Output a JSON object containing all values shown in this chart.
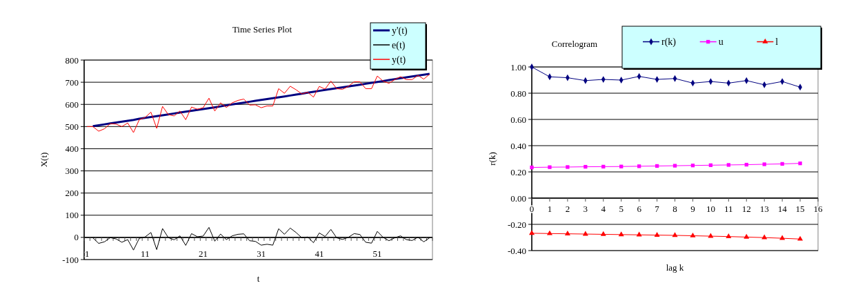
{
  "chart_data": [
    {
      "type": "line",
      "title": "Time Series Plot",
      "xlabel": "t",
      "ylabel": "X(t)",
      "categories": [
        "1",
        null,
        null,
        null,
        null,
        null,
        null,
        null,
        null,
        null,
        "11",
        null,
        null,
        null,
        null,
        null,
        null,
        null,
        null,
        null,
        "21",
        null,
        null,
        null,
        null,
        null,
        null,
        null,
        null,
        null,
        "31",
        null,
        null,
        null,
        null,
        null,
        null,
        null,
        null,
        null,
        "41",
        null,
        null,
        null,
        null,
        null,
        null,
        null,
        null,
        null,
        "51",
        null,
        null,
        null,
        null,
        null,
        null,
        null,
        null,
        null
      ],
      "ylim": [
        -100,
        800
      ],
      "yticks": [
        -100,
        0,
        100,
        200,
        300,
        400,
        500,
        600,
        700,
        800
      ],
      "grid": "y",
      "legend": "top right",
      "series": [
        {
          "name": "y'(t)",
          "color": "#000080",
          "values": [
            null,
            502,
            506,
            510,
            514,
            518,
            522,
            526,
            530,
            535,
            539,
            543,
            547,
            551,
            555,
            559,
            563,
            567,
            571,
            575,
            579,
            583,
            587,
            591,
            596,
            600,
            604,
            608,
            612,
            616,
            620,
            624,
            628,
            632,
            636,
            640,
            644,
            648,
            653,
            657,
            661,
            665,
            669,
            673,
            677,
            681,
            685,
            689,
            693,
            697,
            701,
            705,
            710,
            714,
            718,
            722,
            726,
            730,
            734,
            738
          ]
        },
        {
          "name": "e(t)",
          "color": "#000000",
          "values": [
            null,
            -2,
            -27,
            -20,
            -1,
            -7,
            -22,
            -10,
            -57,
            -4,
            2,
            22,
            -55,
            40,
            -1,
            -11,
            7,
            -36,
            17,
            3,
            6,
            45,
            -17,
            15,
            -10,
            7,
            14,
            16,
            -15,
            -18,
            -35,
            -31,
            -35,
            39,
            14,
            42,
            22,
            -2,
            2,
            -24,
            20,
            4,
            36,
            -2,
            -9,
            0,
            17,
            13,
            -22,
            -26,
            27,
            0,
            -15,
            -2,
            7,
            -10,
            -14,
            1,
            -20,
            -2
          ]
        },
        {
          "name": "y(t)",
          "color": "#ff0000",
          "values": [
            500,
            500,
            479,
            490,
            513,
            511,
            500,
            516,
            473,
            531,
            541,
            565,
            492,
            591,
            554,
            548,
            570,
            531,
            588,
            578,
            585,
            628,
            570,
            607,
            586,
            607,
            618,
            624,
            597,
            598,
            585,
            593,
            593,
            671,
            650,
            682,
            666,
            647,
            655,
            633,
            681,
            669,
            705,
            671,
            668,
            681,
            702,
            702,
            671,
            671,
            728,
            705,
            695,
            712,
            725,
            712,
            712,
            731,
            714,
            736
          ]
        }
      ]
    },
    {
      "type": "line",
      "title": "Correlogram",
      "xlabel": "lag k",
      "ylabel": "r(k)",
      "x": [
        0,
        1,
        2,
        3,
        4,
        5,
        6,
        7,
        8,
        9,
        10,
        11,
        12,
        13,
        14,
        15
      ],
      "xlim": [
        0,
        16
      ],
      "xticks": [
        0,
        1,
        2,
        3,
        4,
        5,
        6,
        7,
        8,
        9,
        10,
        11,
        12,
        13,
        14,
        15,
        16
      ],
      "ylim": [
        -0.4,
        1.0
      ],
      "yticks": [
        {
          "value": -0.4,
          "label": "-0.40"
        },
        {
          "value": -0.2,
          "label": "-0.20"
        },
        {
          "value": 0,
          "label": "0.00"
        },
        {
          "value": 0.2,
          "label": "0.20"
        },
        {
          "value": 0.4,
          "label": "0.40"
        },
        {
          "value": 0.6,
          "label": "0.60"
        },
        {
          "value": 0.8,
          "label": "0.80"
        },
        {
          "value": 1.0,
          "label": "1.00"
        }
      ],
      "grid": "y",
      "legend": "top",
      "series": [
        {
          "name": "r(k)",
          "color": "#000080",
          "marker": "diamond",
          "values": [
            1.0,
            0.925,
            0.918,
            0.896,
            0.905,
            0.9,
            0.928,
            0.905,
            0.912,
            0.877,
            0.889,
            0.877,
            0.896,
            0.864,
            0.889,
            0.846
          ]
        },
        {
          "name": "u",
          "color": "#ff00ff",
          "marker": "square",
          "values": [
            0.234,
            0.236,
            0.237,
            0.239,
            0.24,
            0.241,
            0.243,
            0.245,
            0.247,
            0.249,
            0.251,
            0.253,
            0.255,
            0.258,
            0.261,
            0.265
          ]
        },
        {
          "name": "l",
          "color": "#ff0000",
          "marker": "triangle",
          "values": [
            -0.268,
            -0.27,
            -0.272,
            -0.274,
            -0.276,
            -0.278,
            -0.28,
            -0.282,
            -0.284,
            -0.287,
            -0.29,
            -0.293,
            -0.297,
            -0.301,
            -0.306,
            -0.312
          ]
        }
      ]
    }
  ]
}
